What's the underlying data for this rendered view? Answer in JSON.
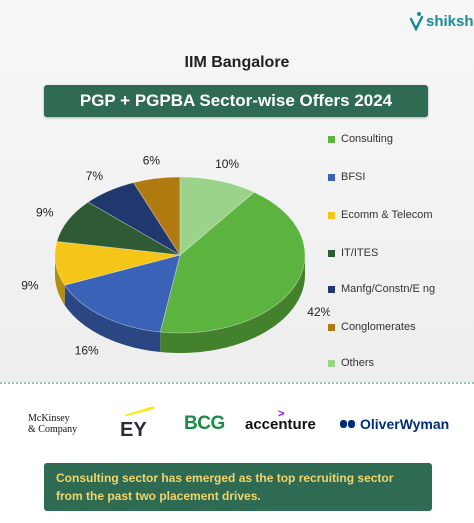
{
  "brand": {
    "name": "shiksha"
  },
  "header": {
    "institute": "IIM Bangalore",
    "banner": "PGP + PGPBA Sector-wise Offers 2024"
  },
  "chart_data": {
    "type": "pie",
    "title": "PGP + PGPBA Sector-wise Offers 2024",
    "unit": "%",
    "legend_position": "right",
    "categories": [
      "Consulting",
      "BFSI",
      "Ecomm & Telecom",
      "IT/ITES",
      "Manfg/Constn/Eng",
      "Conglomerates",
      "Others"
    ],
    "values": [
      42,
      16,
      9,
      9,
      7,
      6,
      10
    ],
    "labels": [
      "42%",
      "16%",
      "9%",
      "9%",
      "7%",
      "6%",
      "10%"
    ],
    "colors": [
      "#5db33f",
      "#3a63b8",
      "#f5c518",
      "#2e5a34",
      "#21386f",
      "#b07a10",
      "#9bd38a"
    ],
    "legend_labels": [
      "Consulting",
      "BFSI",
      "Ecomm & Telecom",
      "IT/ITES",
      "Manfg/Constn/E ng",
      "Conglomerates",
      "Others"
    ]
  },
  "recruiters": {
    "mckinsey_line1": "McKinsey",
    "mckinsey_line2": "& Company",
    "ey": "EY",
    "bcg": "BCG",
    "accenture": "accenture",
    "accenture_mark": ">",
    "oliverwyman": "OliverWyman"
  },
  "note": "Consulting sector has emerged as the top recruiting sector from the past two placement drives.",
  "icons": {
    "brand": "shiksha-logo-icon",
    "ow": "oliverwyman-logo-icon",
    "ey": "ey-slash-icon"
  }
}
